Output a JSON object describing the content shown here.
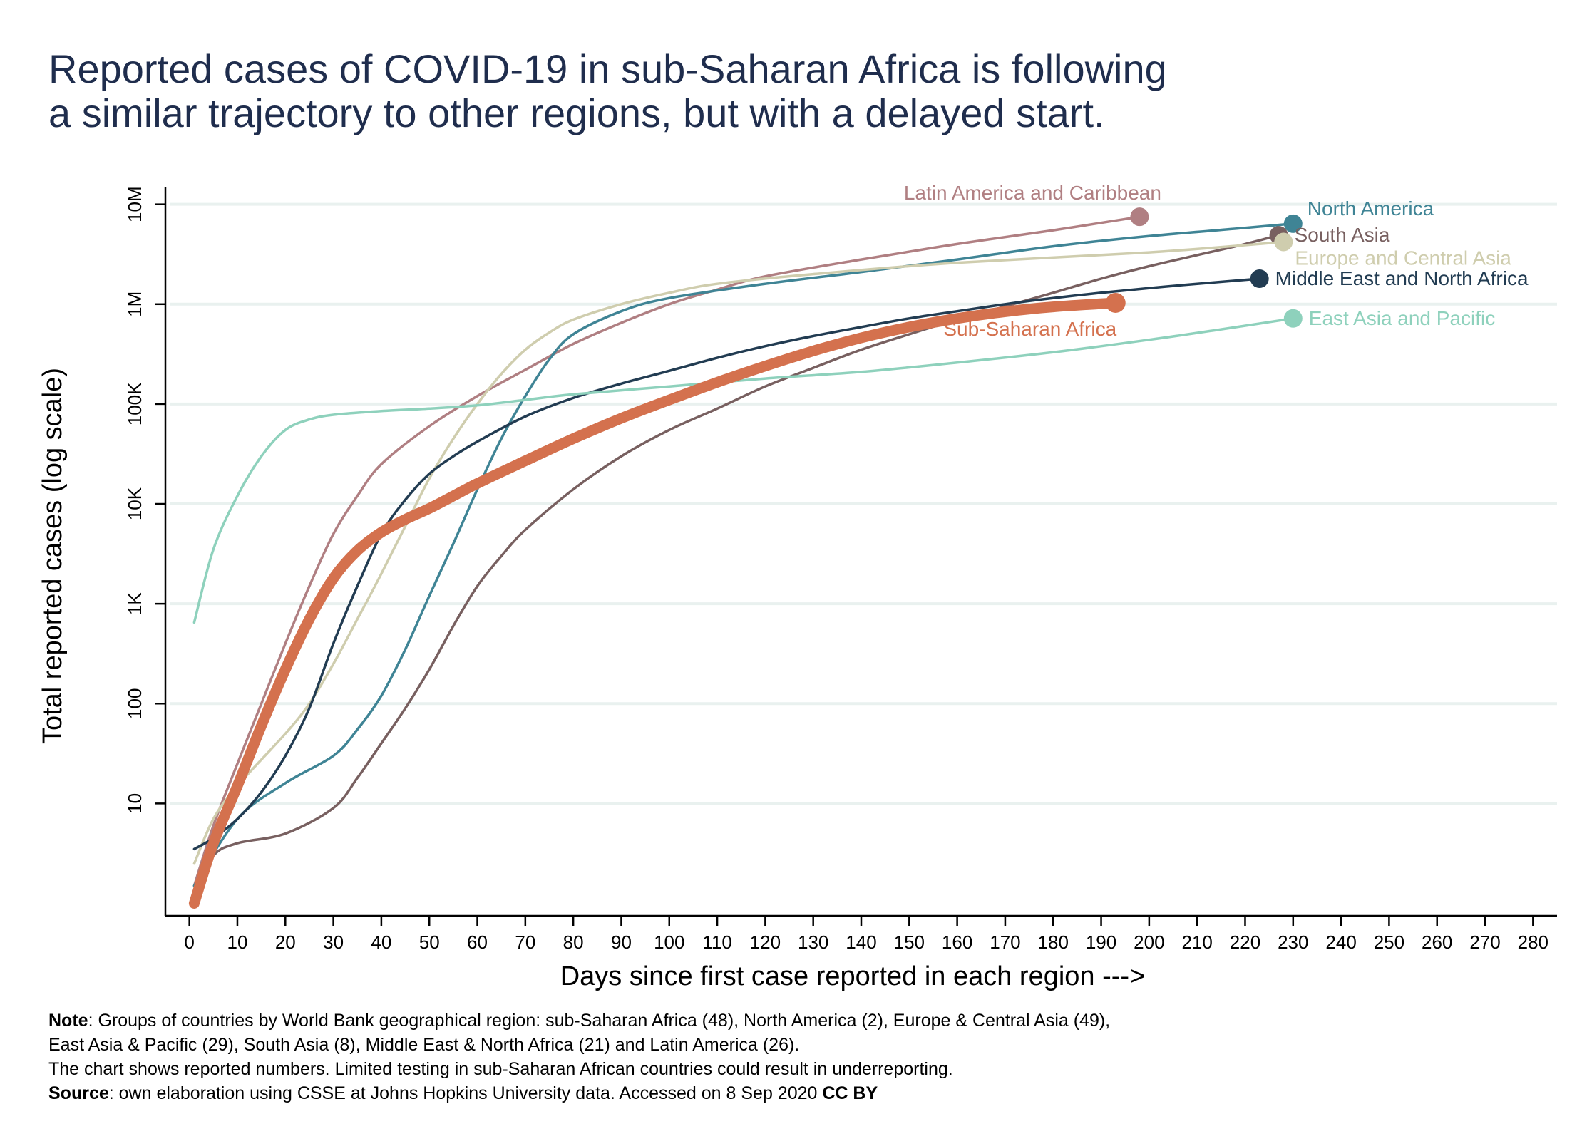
{
  "title": {
    "line1": "Reported cases of COVID-19 in sub-Saharan Africa is following",
    "line2": "a similar trajectory to other regions, but with a delayed start."
  },
  "notes": {
    "note_label": "Note",
    "note_line1": ": Groups of countries by World Bank geographical region: sub-Saharan Africa (48), North America (2), Europe & Central Asia (49),",
    "note_line2": "East Asia & Pacific (29), South Asia (8), Middle East & North Africa (21) and Latin America (26).",
    "note_line3": "The chart shows reported numbers. Limited testing in sub-Saharan African countries could result in underreporting.",
    "source_label": "Source",
    "source_text": ": own elaboration using CSSE at Johns Hopkins University data.  Accessed on  8 Sep 2020 ",
    "license": "CC BY"
  },
  "chart_data": {
    "type": "line",
    "xlabel": "Days since first case reported in each region --->",
    "ylabel": "Total reported cases (log scale)",
    "x_scale": "linear",
    "y_scale": "log10",
    "xlim": [
      -5,
      285
    ],
    "ylim": [
      0.75,
      15000000
    ],
    "x_ticks": [
      0,
      10,
      20,
      30,
      40,
      50,
      60,
      70,
      80,
      90,
      100,
      110,
      120,
      130,
      140,
      150,
      160,
      170,
      180,
      190,
      200,
      210,
      220,
      230,
      240,
      250,
      260,
      270,
      280
    ],
    "y_ticks": [
      {
        "value": 10,
        "label": "10"
      },
      {
        "value": 100,
        "label": "100"
      },
      {
        "value": 1000,
        "label": "1K"
      },
      {
        "value": 10000,
        "label": "10K"
      },
      {
        "value": 100000,
        "label": "100K"
      },
      {
        "value": 1000000,
        "label": "1M"
      },
      {
        "value": 10000000,
        "label": "10M"
      }
    ],
    "grid": "horizontal",
    "legend": "direct labels at line ends",
    "series": [
      {
        "name": "Latin America and Caribbean",
        "color": "#b07f82",
        "label_anchor": "above",
        "points": [
          [
            1,
            1.5
          ],
          [
            5,
            6
          ],
          [
            10,
            25
          ],
          [
            15,
            100
          ],
          [
            20,
            400
          ],
          [
            25,
            1500
          ],
          [
            30,
            5000
          ],
          [
            35,
            12000
          ],
          [
            40,
            25000
          ],
          [
            50,
            60000
          ],
          [
            60,
            120000
          ],
          [
            70,
            220000
          ],
          [
            80,
            400000
          ],
          [
            90,
            650000
          ],
          [
            100,
            1000000
          ],
          [
            110,
            1400000
          ],
          [
            120,
            1900000
          ],
          [
            140,
            2800000
          ],
          [
            160,
            4000000
          ],
          [
            180,
            5500000
          ],
          [
            198,
            7500000
          ]
        ]
      },
      {
        "name": "North America",
        "color": "#3f8495",
        "label_anchor": "right",
        "points": [
          [
            1,
            1.5
          ],
          [
            10,
            7
          ],
          [
            20,
            16
          ],
          [
            30,
            30
          ],
          [
            35,
            55
          ],
          [
            40,
            120
          ],
          [
            45,
            350
          ],
          [
            50,
            1200
          ],
          [
            55,
            4000
          ],
          [
            60,
            14000
          ],
          [
            65,
            45000
          ],
          [
            70,
            120000
          ],
          [
            75,
            280000
          ],
          [
            80,
            500000
          ],
          [
            90,
            850000
          ],
          [
            100,
            1150000
          ],
          [
            120,
            1600000
          ],
          [
            140,
            2100000
          ],
          [
            160,
            2800000
          ],
          [
            180,
            3800000
          ],
          [
            200,
            4800000
          ],
          [
            220,
            5800000
          ],
          [
            230,
            6400000
          ]
        ]
      },
      {
        "name": "South Asia",
        "color": "#786060",
        "label_anchor": "right",
        "points": [
          [
            1,
            1.3
          ],
          [
            5,
            3
          ],
          [
            10,
            4
          ],
          [
            20,
            5
          ],
          [
            30,
            9
          ],
          [
            35,
            18
          ],
          [
            40,
            40
          ],
          [
            45,
            90
          ],
          [
            50,
            220
          ],
          [
            55,
            600
          ],
          [
            60,
            1500
          ],
          [
            65,
            3000
          ],
          [
            70,
            5500
          ],
          [
            80,
            14000
          ],
          [
            90,
            30000
          ],
          [
            100,
            55000
          ],
          [
            110,
            90000
          ],
          [
            120,
            150000
          ],
          [
            130,
            230000
          ],
          [
            140,
            350000
          ],
          [
            150,
            500000
          ],
          [
            160,
            700000
          ],
          [
            170,
            950000
          ],
          [
            180,
            1300000
          ],
          [
            190,
            1800000
          ],
          [
            200,
            2400000
          ],
          [
            210,
            3100000
          ],
          [
            220,
            4000000
          ],
          [
            227,
            4900000
          ]
        ]
      },
      {
        "name": "Europe and Central Asia",
        "color": "#cfcdae",
        "label_anchor": "below-right",
        "points": [
          [
            1,
            2.5
          ],
          [
            5,
            7
          ],
          [
            10,
            15
          ],
          [
            20,
            50
          ],
          [
            25,
            100
          ],
          [
            30,
            250
          ],
          [
            35,
            700
          ],
          [
            40,
            2000
          ],
          [
            45,
            6000
          ],
          [
            50,
            18000
          ],
          [
            55,
            45000
          ],
          [
            60,
            100000
          ],
          [
            65,
            200000
          ],
          [
            70,
            350000
          ],
          [
            75,
            520000
          ],
          [
            80,
            700000
          ],
          [
            90,
            1000000
          ],
          [
            100,
            1300000
          ],
          [
            110,
            1600000
          ],
          [
            130,
            2000000
          ],
          [
            160,
            2600000
          ],
          [
            200,
            3300000
          ],
          [
            228,
            4200000
          ]
        ]
      },
      {
        "name": "Middle East and North Africa",
        "color": "#223c52",
        "label_anchor": "right",
        "points": [
          [
            1,
            3.5
          ],
          [
            5,
            4.5
          ],
          [
            10,
            7
          ],
          [
            15,
            13
          ],
          [
            20,
            30
          ],
          [
            25,
            90
          ],
          [
            30,
            400
          ],
          [
            35,
            1500
          ],
          [
            40,
            5000
          ],
          [
            45,
            11000
          ],
          [
            50,
            20000
          ],
          [
            55,
            30000
          ],
          [
            60,
            42000
          ],
          [
            70,
            75000
          ],
          [
            80,
            115000
          ],
          [
            90,
            160000
          ],
          [
            100,
            215000
          ],
          [
            110,
            290000
          ],
          [
            120,
            380000
          ],
          [
            130,
            480000
          ],
          [
            140,
            590000
          ],
          [
            150,
            720000
          ],
          [
            160,
            850000
          ],
          [
            170,
            1000000
          ],
          [
            180,
            1150000
          ],
          [
            190,
            1300000
          ],
          [
            200,
            1450000
          ],
          [
            210,
            1600000
          ],
          [
            223,
            1800000
          ]
        ]
      },
      {
        "name": "East Asia and Pacific",
        "color": "#8ed1bc",
        "label_anchor": "right",
        "points": [
          [
            1,
            650
          ],
          [
            5,
            3500
          ],
          [
            10,
            12000
          ],
          [
            15,
            30000
          ],
          [
            20,
            55000
          ],
          [
            25,
            70000
          ],
          [
            30,
            78000
          ],
          [
            40,
            85000
          ],
          [
            50,
            90000
          ],
          [
            60,
            97000
          ],
          [
            70,
            110000
          ],
          [
            80,
            125000
          ],
          [
            100,
            150000
          ],
          [
            120,
            180000
          ],
          [
            140,
            210000
          ],
          [
            160,
            260000
          ],
          [
            180,
            330000
          ],
          [
            200,
            440000
          ],
          [
            215,
            560000
          ],
          [
            230,
            720000
          ]
        ]
      },
      {
        "name": "Sub-Saharan Africa",
        "color": "#d4714e",
        "label_anchor": "below",
        "highlight": true,
        "points": [
          [
            1,
            1
          ],
          [
            5,
            4
          ],
          [
            10,
            15
          ],
          [
            15,
            60
          ],
          [
            20,
            220
          ],
          [
            25,
            700
          ],
          [
            30,
            1800
          ],
          [
            35,
            3400
          ],
          [
            40,
            5200
          ],
          [
            45,
            7000
          ],
          [
            50,
            9000
          ],
          [
            55,
            12000
          ],
          [
            60,
            16000
          ],
          [
            70,
            27000
          ],
          [
            80,
            45000
          ],
          [
            90,
            72000
          ],
          [
            100,
            110000
          ],
          [
            110,
            165000
          ],
          [
            120,
            240000
          ],
          [
            130,
            340000
          ],
          [
            140,
            460000
          ],
          [
            150,
            590000
          ],
          [
            160,
            720000
          ],
          [
            170,
            840000
          ],
          [
            180,
            940000
          ],
          [
            193,
            1030000
          ]
        ]
      }
    ]
  }
}
